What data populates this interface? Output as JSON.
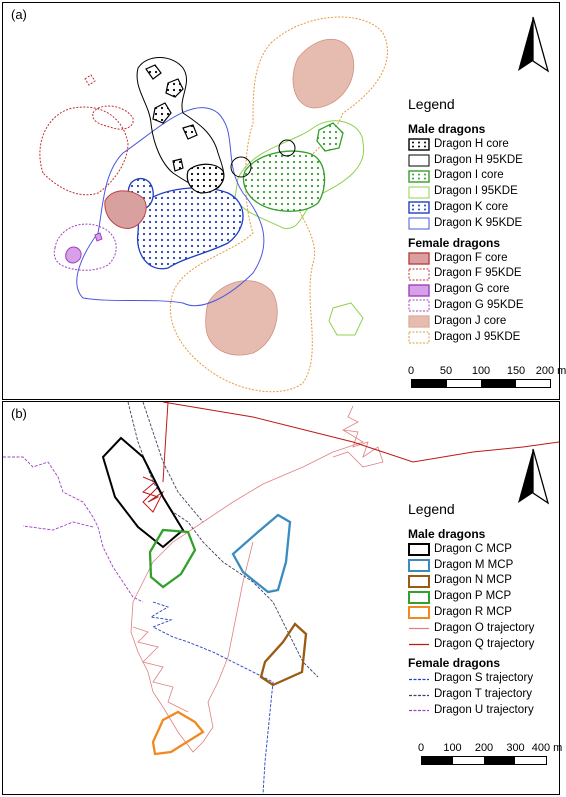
{
  "panel_a": {
    "label": "(a)",
    "legend": {
      "title": "Legend",
      "groups": [
        {
          "title": "Male dragons",
          "items": [
            {
              "label": "Dragon H core",
              "type": "core",
              "color": "#000000",
              "fill": "dots-black"
            },
            {
              "label": "Dragon H 95KDE",
              "type": "kde",
              "color": "#000000"
            },
            {
              "label": "Dragon I core",
              "type": "core",
              "color": "#33a02c",
              "fill": "dots-green"
            },
            {
              "label": "Dragon I 95KDE",
              "type": "kde",
              "color": "#8fd14f"
            },
            {
              "label": "Dragon K core",
              "type": "core",
              "color": "#1f3fbf",
              "fill": "dots-blue"
            },
            {
              "label": "Dragon K 95KDE",
              "type": "kde",
              "color": "#4a58e0"
            }
          ]
        },
        {
          "title": "Female dragons",
          "items": [
            {
              "label": "Dragon F core",
              "type": "core",
              "color": "#c04040",
              "fill": "#d9a0a0"
            },
            {
              "label": "Dragon F 95KDE",
              "type": "kde-dash",
              "color": "#c03030"
            },
            {
              "label": "Dragon G core",
              "type": "core",
              "color": "#a040c0",
              "fill": "#d8a0e8"
            },
            {
              "label": "Dragon G 95KDE",
              "type": "kde-dash",
              "color": "#a040c0"
            },
            {
              "label": "Dragon J core",
              "type": "core",
              "color": "#e0b0a0",
              "fill": "#e6bcb0"
            },
            {
              "label": "Dragon J 95KDE",
              "type": "kde-dash",
              "color": "#e69a3c"
            }
          ]
        }
      ]
    },
    "scale": {
      "ticks": [
        "0",
        "50",
        "100",
        "150",
        "200 m"
      ]
    }
  },
  "panel_b": {
    "label": "(b)",
    "legend": {
      "title": "Legend",
      "groups": [
        {
          "title": "Male dragons",
          "items": [
            {
              "label": "Dragon C MCP",
              "type": "mcp",
              "color": "#000000"
            },
            {
              "label": "Dragon M MCP",
              "type": "mcp",
              "color": "#3a8cc0"
            },
            {
              "label": "Dragon N MCP",
              "type": "mcp",
              "color": "#9a5a10"
            },
            {
              "label": "Dragon P MCP",
              "type": "mcp",
              "color": "#33a02c"
            },
            {
              "label": "Dragon R MCP",
              "type": "mcp",
              "color": "#f08a20"
            },
            {
              "label": "Dragon O trajectory",
              "type": "line",
              "color": "#e08080"
            },
            {
              "label": "Dragon Q trajectory",
              "type": "line",
              "color": "#c01818"
            }
          ]
        },
        {
          "title": "Female dragons",
          "items": [
            {
              "label": "Dragon S trajectory",
              "type": "line-dash",
              "color": "#2040c0"
            },
            {
              "label": "Dragon T trajectory",
              "type": "line-dash",
              "color": "#404060"
            },
            {
              "label": "Dragon U trajectory",
              "type": "line-dash",
              "color": "#a040c0"
            }
          ]
        }
      ]
    },
    "scale": {
      "ticks": [
        "0",
        "100",
        "200",
        "300",
        "400 m"
      ]
    }
  }
}
